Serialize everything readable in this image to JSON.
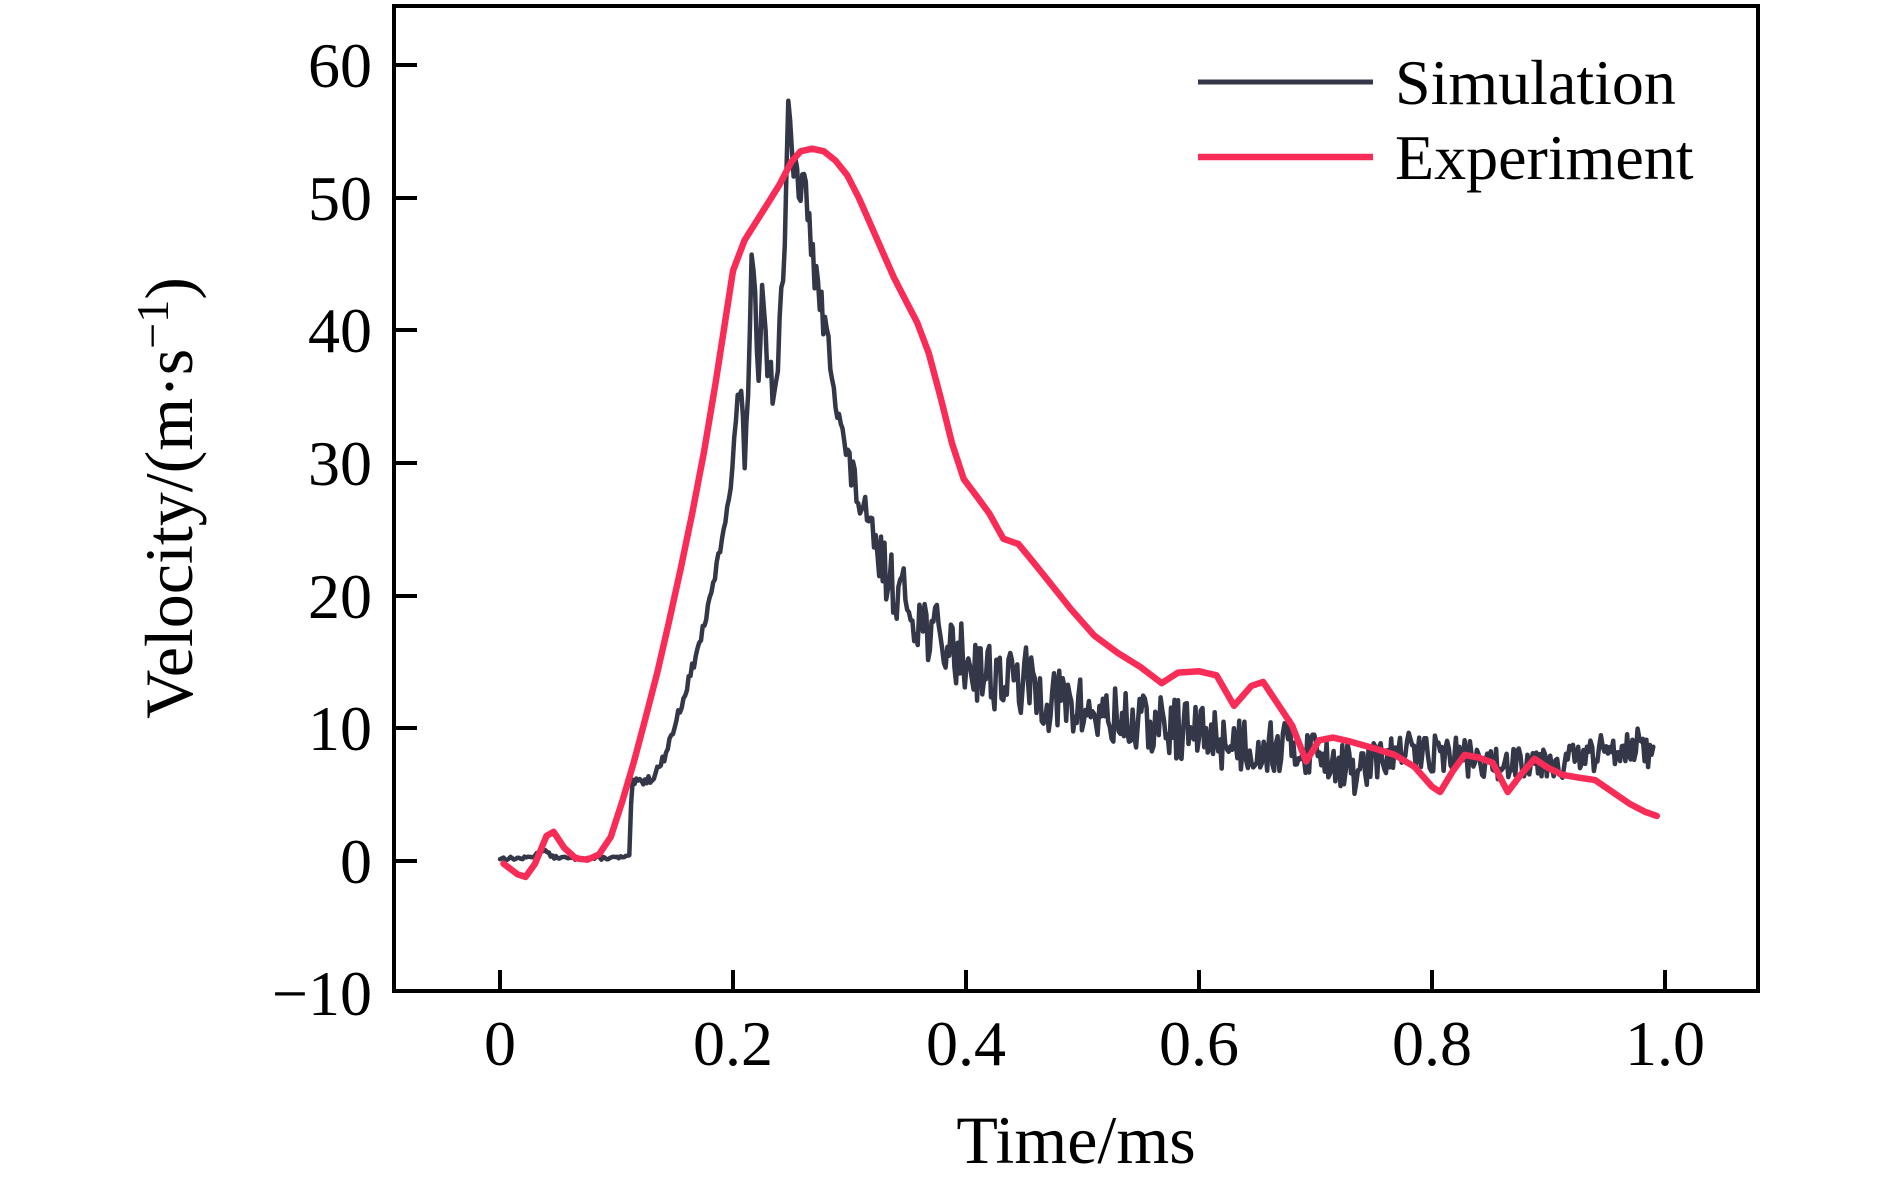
{
  "figure": {
    "background": "#ffffff",
    "axes_color": "#000000"
  },
  "chart_data": {
    "type": "line",
    "title": "",
    "xlabel": "Time/ms",
    "ylabel": "Velocity/(m·s⁻¹)",
    "ylabel_parts": {
      "pre": "Velocity/(m·s",
      "sup": "−1",
      "post": ")"
    },
    "xlim": [
      -0.093,
      1.083
    ],
    "ylim": [
      -10,
      64.6
    ],
    "grid": false,
    "legend_position": "top-right-inside",
    "x_ticks": [
      0,
      0.2,
      0.4,
      0.6,
      0.8,
      1.0
    ],
    "x_tick_labels": [
      "0",
      "0.2",
      "0.4",
      "0.6",
      "0.8",
      "1.0"
    ],
    "y_ticks": [
      60,
      50,
      40,
      30,
      20,
      10,
      0,
      -10
    ],
    "y_tick_labels": [
      "60",
      "50",
      "40",
      "30",
      "20",
      "10",
      "0",
      "−10"
    ],
    "series": [
      {
        "name": "Simulation",
        "color": "#343747",
        "line_width": 4.5,
        "style": "noisy",
        "base_points": [
          [
            0,
            0.2
          ],
          [
            0.02,
            0.2
          ],
          [
            0.03,
            0.4
          ],
          [
            0.037,
            0.9
          ],
          [
            0.045,
            0.3
          ],
          [
            0.06,
            0.2
          ],
          [
            0.08,
            0.2
          ],
          [
            0.1,
            0.25
          ],
          [
            0.111,
            0.3
          ],
          [
            0.113,
            5.8
          ],
          [
            0.12,
            6.0
          ],
          [
            0.13,
            6.2
          ],
          [
            0.14,
            7.6
          ],
          [
            0.15,
            10.2
          ],
          [
            0.16,
            13
          ],
          [
            0.17,
            16
          ],
          [
            0.18,
            19.5
          ],
          [
            0.19,
            24
          ],
          [
            0.198,
            28.5
          ],
          [
            0.202,
            32
          ],
          [
            0.205,
            36.5
          ],
          [
            0.208,
            33
          ],
          [
            0.21,
            30.5
          ],
          [
            0.213,
            36
          ],
          [
            0.216,
            44.8
          ],
          [
            0.219,
            41.5
          ],
          [
            0.222,
            37
          ],
          [
            0.225,
            44
          ],
          [
            0.2275,
            40
          ],
          [
            0.23,
            37.5
          ],
          [
            0.2325,
            39
          ],
          [
            0.235,
            33.5
          ],
          [
            0.2375,
            36.5
          ],
          [
            0.24,
            41
          ],
          [
            0.2425,
            44
          ],
          [
            0.245,
            48
          ],
          [
            0.2475,
            56
          ],
          [
            0.25,
            54
          ],
          [
            0.2525,
            51
          ],
          [
            0.255,
            52.5
          ],
          [
            0.258,
            50
          ],
          [
            0.262,
            51
          ],
          [
            0.266,
            47.5
          ],
          [
            0.27,
            44.5
          ],
          [
            0.274,
            42.5
          ],
          [
            0.278,
            40.5
          ],
          [
            0.282,
            38.5
          ],
          [
            0.286,
            37
          ],
          [
            0.29,
            34.5
          ],
          [
            0.295,
            31.5
          ],
          [
            0.3,
            29.5
          ],
          [
            0.305,
            28.5
          ],
          [
            0.31,
            26.5
          ],
          [
            0.315,
            25.2
          ],
          [
            0.32,
            24
          ],
          [
            0.33,
            22
          ],
          [
            0.34,
            20.5
          ],
          [
            0.35,
            19.5
          ],
          [
            0.36,
            18.3
          ],
          [
            0.37,
            17.3
          ],
          [
            0.38,
            16.4
          ],
          [
            0.39,
            15.8
          ],
          [
            0.4,
            15.2
          ],
          [
            0.42,
            14.2
          ],
          [
            0.44,
            13.4
          ],
          [
            0.45,
            13.6
          ],
          [
            0.46,
            12.8
          ],
          [
            0.48,
            12.0
          ],
          [
            0.5,
            11.4
          ],
          [
            0.52,
            10.8
          ],
          [
            0.54,
            10.4
          ],
          [
            0.56,
            10.2
          ],
          [
            0.58,
            10.0
          ],
          [
            0.6,
            9.6
          ],
          [
            0.62,
            9.2
          ],
          [
            0.64,
            8.8
          ],
          [
            0.66,
            8.6
          ],
          [
            0.68,
            8.6
          ],
          [
            0.7,
            8.3
          ],
          [
            0.72,
            7.5
          ],
          [
            0.735,
            6.6
          ],
          [
            0.75,
            7.4
          ],
          [
            0.765,
            8.0
          ],
          [
            0.78,
            8.3
          ],
          [
            0.8,
            8.2
          ],
          [
            0.82,
            8.0
          ],
          [
            0.84,
            7.6
          ],
          [
            0.85,
            7.0
          ],
          [
            0.86,
            7.4
          ],
          [
            0.88,
            7.8
          ],
          [
            0.9,
            7.6
          ],
          [
            0.92,
            7.6
          ],
          [
            0.94,
            8.0
          ],
          [
            0.96,
            8.7
          ],
          [
            0.975,
            8.9
          ],
          [
            0.985,
            8.0
          ],
          [
            0.99,
            7.4
          ]
        ],
        "noise": {
          "seed": 13,
          "dt": 0.0015,
          "amplitude_profile": [
            [
              0,
              0.12
            ],
            [
              0.11,
              0.12
            ],
            [
              0.114,
              0.3
            ],
            [
              0.195,
              0.45
            ],
            [
              0.202,
              1.5
            ],
            [
              0.248,
              1.6
            ],
            [
              0.26,
              1.5
            ],
            [
              0.3,
              1.7
            ],
            [
              0.33,
              2.1
            ],
            [
              0.36,
              2.5
            ],
            [
              0.42,
              2.7
            ],
            [
              0.55,
              2.4
            ],
            [
              0.62,
              2.3
            ],
            [
              0.68,
              2.0
            ],
            [
              0.72,
              1.9
            ],
            [
              0.76,
              1.5
            ],
            [
              0.85,
              1.4
            ],
            [
              0.93,
              1.4
            ],
            [
              0.99,
              1.3
            ]
          ]
        }
      },
      {
        "name": "Experiment",
        "color": "#f92c57",
        "line_width": 6.5,
        "style": "smooth",
        "points": [
          [
            0.003,
            -0.2
          ],
          [
            0.015,
            -1.0
          ],
          [
            0.022,
            -1.2
          ],
          [
            0.03,
            -0.2
          ],
          [
            0.04,
            1.9
          ],
          [
            0.046,
            2.2
          ],
          [
            0.055,
            1.0
          ],
          [
            0.065,
            0.2
          ],
          [
            0.075,
            0.1
          ],
          [
            0.085,
            0.5
          ],
          [
            0.095,
            1.8
          ],
          [
            0.105,
            4.5
          ],
          [
            0.115,
            7.5
          ],
          [
            0.125,
            10.8
          ],
          [
            0.135,
            14.2
          ],
          [
            0.145,
            18
          ],
          [
            0.155,
            22
          ],
          [
            0.165,
            26.2
          ],
          [
            0.175,
            30.8
          ],
          [
            0.185,
            36
          ],
          [
            0.193,
            40.5
          ],
          [
            0.2,
            44.5
          ],
          [
            0.21,
            46.8
          ],
          [
            0.22,
            48.2
          ],
          [
            0.23,
            49.6
          ],
          [
            0.24,
            51
          ],
          [
            0.25,
            52.7
          ],
          [
            0.258,
            53.5
          ],
          [
            0.268,
            53.7
          ],
          [
            0.278,
            53.5
          ],
          [
            0.288,
            52.8
          ],
          [
            0.298,
            51.7
          ],
          [
            0.308,
            50
          ],
          [
            0.318,
            48
          ],
          [
            0.328,
            46
          ],
          [
            0.338,
            44
          ],
          [
            0.348,
            42.3
          ],
          [
            0.358,
            40.6
          ],
          [
            0.368,
            38.3
          ],
          [
            0.378,
            35
          ],
          [
            0.388,
            31.5
          ],
          [
            0.398,
            28.8
          ],
          [
            0.41,
            27.4
          ],
          [
            0.42,
            26.2
          ],
          [
            0.432,
            24.3
          ],
          [
            0.445,
            23.9
          ],
          [
            0.458,
            22.5
          ],
          [
            0.47,
            21.2
          ],
          [
            0.49,
            19
          ],
          [
            0.51,
            17
          ],
          [
            0.53,
            15.7
          ],
          [
            0.55,
            14.6
          ],
          [
            0.568,
            13.4
          ],
          [
            0.582,
            14.2
          ],
          [
            0.6,
            14.3
          ],
          [
            0.615,
            14.0
          ],
          [
            0.63,
            11.7
          ],
          [
            0.645,
            13.2
          ],
          [
            0.655,
            13.5
          ],
          [
            0.668,
            11.8
          ],
          [
            0.68,
            10.2
          ],
          [
            0.692,
            7.5
          ],
          [
            0.703,
            9.1
          ],
          [
            0.715,
            9.3
          ],
          [
            0.73,
            9.0
          ],
          [
            0.75,
            8.5
          ],
          [
            0.768,
            8.0
          ],
          [
            0.785,
            7.1
          ],
          [
            0.8,
            5.6
          ],
          [
            0.807,
            5.2
          ],
          [
            0.818,
            6.8
          ],
          [
            0.828,
            8.0
          ],
          [
            0.84,
            7.8
          ],
          [
            0.852,
            7.4
          ],
          [
            0.865,
            5.2
          ],
          [
            0.877,
            6.6
          ],
          [
            0.888,
            7.7
          ],
          [
            0.9,
            7.0
          ],
          [
            0.912,
            6.5
          ],
          [
            0.925,
            6.3
          ],
          [
            0.94,
            6.1
          ],
          [
            0.955,
            5.2
          ],
          [
            0.97,
            4.3
          ],
          [
            0.983,
            3.7
          ],
          [
            0.993,
            3.4
          ]
        ]
      }
    ]
  }
}
